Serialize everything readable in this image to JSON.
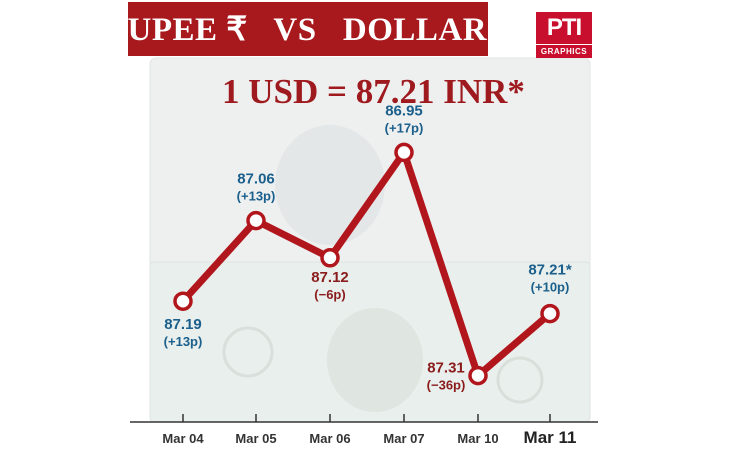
{
  "title": "RUPEE ₹   VS   DOLLAR $",
  "headline": "1 USD = 87.21 INR*",
  "logo": {
    "main": "PTI",
    "sub": "GRAPHICS"
  },
  "colors": {
    "brand": "#a8191e",
    "line": "#b2161d",
    "value_label": "#1b5f8c",
    "drop_label": "#8a1c1c",
    "axis": "#333333"
  },
  "chart_data": {
    "type": "line",
    "categories": [
      "Mar 04",
      "Mar 05",
      "Mar 06",
      "Mar 07",
      "Mar 10",
      "Mar 11"
    ],
    "values": [
      87.19,
      87.06,
      87.12,
      86.95,
      87.31,
      87.21
    ],
    "value_labels": [
      "87.19",
      "87.06",
      "87.12",
      "86.95",
      "87.31",
      "87.21*"
    ],
    "changes": [
      "(+13p)",
      "(+13p)",
      "(−6p)",
      "(+17p)",
      "(−36p)",
      "(+10p)"
    ],
    "direction": [
      "up",
      "up",
      "down",
      "up",
      "down",
      "up"
    ],
    "y_axis": "inverted",
    "grid": false,
    "legend": "none",
    "highlight_last_category": true
  }
}
